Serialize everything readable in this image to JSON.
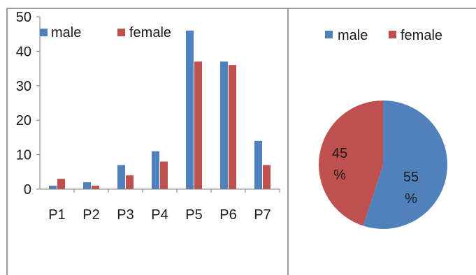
{
  "colors": {
    "male": "#4f81bd",
    "female": "#c0504d",
    "axis": "#7f7f7f",
    "frame": "#7f7f7f"
  },
  "chart_data": [
    {
      "type": "bar",
      "categories": [
        "P1",
        "P2",
        "P3",
        "P4",
        "P5",
        "P6",
        "P7"
      ],
      "series": [
        {
          "name": "male",
          "values": [
            1,
            2,
            7,
            11,
            46,
            37,
            14
          ]
        },
        {
          "name": "female",
          "values": [
            3,
            1,
            4,
            8,
            37,
            36,
            7
          ]
        }
      ],
      "ylim": [
        0,
        50
      ],
      "yticks": [
        "0",
        "10",
        "20",
        "30",
        "40",
        "50"
      ],
      "legend": [
        "male",
        "female"
      ],
      "legend_position": "top",
      "grid": false
    },
    {
      "type": "pie",
      "slices": [
        {
          "name": "male",
          "value": 55,
          "label_number": "55",
          "label_unit": "%"
        },
        {
          "name": "female",
          "value": 45,
          "label_number": "45",
          "label_unit": "%"
        }
      ],
      "legend": [
        "male",
        "female"
      ],
      "legend_position": "top"
    }
  ]
}
